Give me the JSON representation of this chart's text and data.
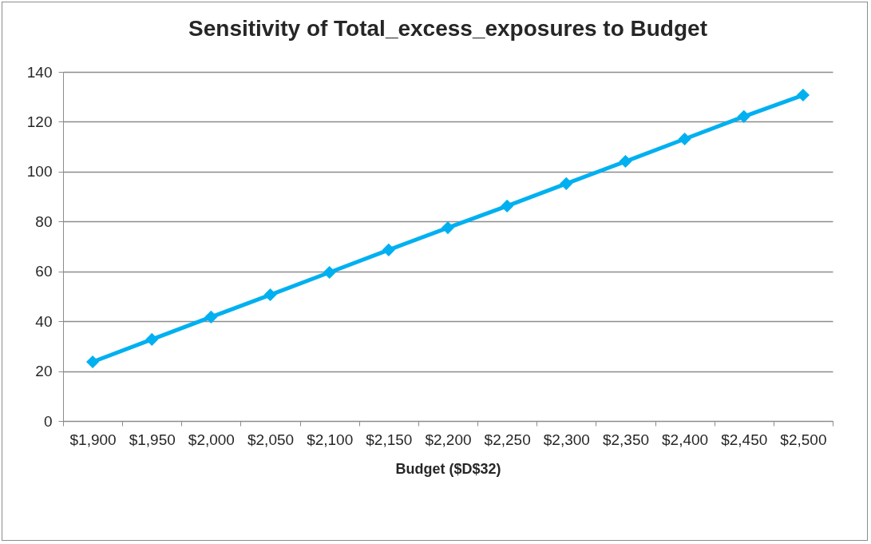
{
  "chart_data": {
    "type": "line",
    "title": "Sensitivity of Total_excess_exposures to Budget",
    "xlabel": "Budget ($D$32)",
    "categories": [
      "$1,900",
      "$1,950",
      "$2,000",
      "$2,050",
      "$2,100",
      "$2,150",
      "$2,200",
      "$2,250",
      "$2,300",
      "$2,350",
      "$2,400",
      "$2,450",
      "$2,500"
    ],
    "series": [
      {
        "color": "#00b0f0",
        "values": [
          23.7,
          32.7,
          41.7,
          50.6,
          59.6,
          68.6,
          77.5,
          86.2,
          95.2,
          104.1,
          113.1,
          122.1,
          130.7
        ]
      }
    ],
    "ylim": [
      0,
      140
    ],
    "yticks": [
      0,
      20,
      40,
      60,
      80,
      100,
      120,
      140
    ],
    "grid": "y",
    "marker": "diamond",
    "line_style": "solid"
  }
}
